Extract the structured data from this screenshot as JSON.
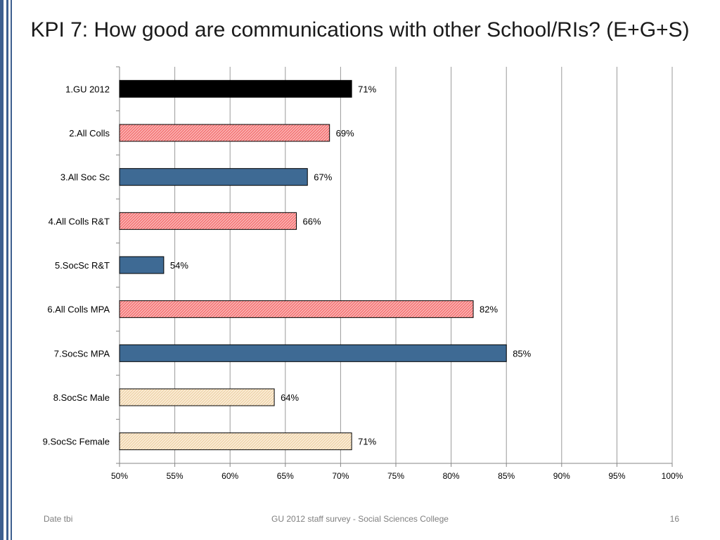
{
  "slide": {
    "title": "KPI 7: How good are communications with other School/RIs? (E+G+S)",
    "footer_left": "Date tbi",
    "footer_center": "GU 2012 staff survey -  Social Sciences College",
    "page_number": "16"
  },
  "chart_data": {
    "type": "bar",
    "orientation": "horizontal",
    "title": "",
    "xlabel": "",
    "ylabel": "",
    "xlim": [
      50,
      100
    ],
    "ticks": [
      50,
      55,
      60,
      65,
      70,
      75,
      80,
      85,
      90,
      95,
      100
    ],
    "tick_labels": [
      "50%",
      "55%",
      "60%",
      "65%",
      "70%",
      "75%",
      "80%",
      "85%",
      "90%",
      "95%",
      "100%"
    ],
    "grid": true,
    "legend": "none",
    "categories": [
      "1.GU 2012",
      "2.All Colls",
      "3.All Soc Sc",
      "4.All Colls R&T",
      "5.SocSc R&T",
      "6.All Colls MPA",
      "7.SocSc MPA",
      "8.SocSc Male",
      "9.SocSc Female"
    ],
    "values": [
      71,
      69,
      67,
      66,
      54,
      82,
      85,
      64,
      71
    ],
    "value_labels": [
      "71%",
      "69%",
      "67%",
      "66%",
      "54%",
      "82%",
      "85%",
      "64%",
      "71%"
    ],
    "bar_styles": [
      "black",
      "pink-hatch",
      "blue",
      "pink-hatch",
      "blue",
      "pink-hatch",
      "blue",
      "cream-hatch",
      "cream-hatch"
    ],
    "colors": {
      "black": "#000000",
      "pink": "#f47a7a",
      "blue": "#3e6a94",
      "cream": "#f9e4c8",
      "grid": "#9a9a9a"
    }
  }
}
